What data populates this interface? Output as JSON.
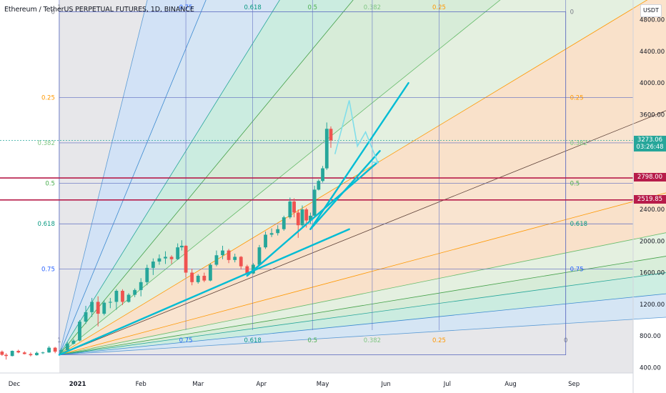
{
  "header": {
    "title": "Ethereum / TetherUS PERPETUAL FUTURES, 1D, BINANCE",
    "unit": "USDT"
  },
  "chart_data": {
    "type": "candlestick",
    "price_axis": {
      "ticks": [
        400,
        800,
        1200,
        1600,
        2000,
        2400,
        2800,
        3200,
        3600,
        4000,
        4400,
        4800
      ],
      "tick_labels": [
        "400.00",
        "800.00",
        "1200.00",
        "1600.00",
        "2000.00",
        "2400.00",
        "2800.00",
        "3200.00",
        "3600.00",
        "4000.00",
        "4400.00",
        "4800.00"
      ],
      "range": [
        330,
        5050
      ]
    },
    "time_axis": {
      "range": [
        "2020-11-24",
        "2021-09-30"
      ],
      "ticks": [
        {
          "date": "2020-12-01",
          "label": "Dec"
        },
        {
          "date": "2021-01-01",
          "label": "2021"
        },
        {
          "date": "2021-02-01",
          "label": "Feb"
        },
        {
          "date": "2021-03-01",
          "label": "Mar"
        },
        {
          "date": "2021-04-01",
          "label": "Apr"
        },
        {
          "date": "2021-05-01",
          "label": "May"
        },
        {
          "date": "2021-06-01",
          "label": "Jun"
        },
        {
          "date": "2021-07-01",
          "label": "Jul"
        },
        {
          "date": "2021-08-01",
          "label": "Aug"
        },
        {
          "date": "2021-09-01",
          "label": "Sep"
        }
      ]
    },
    "current_price": {
      "value": "3273.06",
      "countdown": "03:26:48",
      "color": "#26a69a"
    },
    "horizontal_levels": [
      {
        "value": 2798.0,
        "label": "2798.00",
        "color": "#b71c4a"
      },
      {
        "value": 2519.85,
        "label": "2519.85",
        "color": "#b71c4a"
      }
    ],
    "gann_box": {
      "start": {
        "date": "2020-12-23",
        "price": 560
      },
      "end": {
        "date": "2021-08-28",
        "price": 4900
      },
      "levels": [
        {
          "ratio": 0,
          "label": "0",
          "color": "#787b86"
        },
        {
          "ratio": 0.25,
          "label": "0.25",
          "color": "#ff9800"
        },
        {
          "ratio": 0.382,
          "label": "0.382",
          "color": "#81c784"
        },
        {
          "ratio": 0.5,
          "label": "0.5",
          "color": "#4caf50"
        },
        {
          "ratio": 0.618,
          "label": "0.618",
          "color": "#089981"
        },
        {
          "ratio": 0.75,
          "label": "0.75",
          "color": "#2962ff"
        },
        {
          "ratio": 1,
          "label": "1",
          "color": "#787b86"
        }
      ]
    },
    "gann_fan": {
      "origin": {
        "date": "2020-12-23",
        "price": 560
      },
      "slopes": [
        {
          "price_per_day": 104.1,
          "fill": "#cfe1f7",
          "line": "#5b9bd5"
        },
        {
          "price_per_day": 62.5,
          "fill": "#d3e4f5",
          "line": "#3b8ad0"
        },
        {
          "price_per_day": 41.6,
          "fill": "#c8ecdf",
          "line": "#26a69a"
        },
        {
          "price_per_day": 31.2,
          "fill": "#d5ecd6",
          "line": "#43a047"
        },
        {
          "price_per_day": 20.8,
          "fill": "#e3f1df",
          "line": "#66bb6a"
        },
        {
          "price_per_day": 15.6,
          "fill": "#fbe0c6",
          "line": "#ff9800"
        },
        {
          "price_per_day": 10.4,
          "fill": "#fbe3cd",
          "line": "#5d4037"
        },
        {
          "price_per_day": 6.9,
          "fill": "#fbe0c6",
          "line": "#ff9800"
        },
        {
          "price_per_day": 5.2,
          "fill": "#e3f1df",
          "line": "#66bb6a"
        },
        {
          "price_per_day": 4.2,
          "fill": "#d5ecd6",
          "line": "#43a047"
        },
        {
          "price_per_day": 3.5,
          "fill": "#c8ecdf",
          "line": "#26a69a"
        },
        {
          "price_per_day": 2.6,
          "fill": "#d3e4f5",
          "line": "#3b8ad0"
        },
        {
          "price_per_day": 1.6,
          "fill": "#cfe1f7",
          "line": "#5b9bd5"
        }
      ]
    },
    "trend_lines": [
      {
        "from": {
          "date": "2020-12-23",
          "price": 560
        },
        "to": {
          "date": "2021-05-14",
          "price": 2150
        }
      },
      {
        "from": {
          "date": "2021-03-25",
          "price": 1560
        },
        "to": {
          "date": "2021-05-28",
          "price": 3000
        }
      },
      {
        "from": {
          "date": "2021-04-25",
          "price": 2150
        },
        "to": {
          "date": "2021-06-12",
          "price": 4000
        }
      },
      {
        "from": {
          "date": "2021-04-25",
          "price": 2150
        },
        "to": {
          "date": "2021-05-29",
          "price": 3140
        }
      }
    ],
    "projection_path": [
      {
        "date": "2021-05-07",
        "price": 3100
      },
      {
        "date": "2021-05-14",
        "price": 3780
      },
      {
        "date": "2021-05-18",
        "price": 3200
      },
      {
        "date": "2021-05-22",
        "price": 3380
      },
      {
        "date": "2021-05-28",
        "price": 2990
      }
    ],
    "candles": [
      {
        "date": "2020-11-25",
        "open": 600,
        "high": 615,
        "low": 548,
        "close": 560
      },
      {
        "date": "2020-11-27",
        "open": 560,
        "high": 580,
        "low": 500,
        "close": 545
      },
      {
        "date": "2020-11-30",
        "open": 545,
        "high": 615,
        "low": 540,
        "close": 610
      },
      {
        "date": "2020-12-03",
        "open": 610,
        "high": 625,
        "low": 580,
        "close": 590
      },
      {
        "date": "2020-12-06",
        "open": 590,
        "high": 605,
        "low": 565,
        "close": 570
      },
      {
        "date": "2020-12-09",
        "open": 570,
        "high": 590,
        "low": 540,
        "close": 555
      },
      {
        "date": "2020-12-12",
        "open": 555,
        "high": 600,
        "low": 550,
        "close": 585
      },
      {
        "date": "2020-12-15",
        "open": 585,
        "high": 600,
        "low": 570,
        "close": 590
      },
      {
        "date": "2020-12-18",
        "open": 590,
        "high": 670,
        "low": 585,
        "close": 650
      },
      {
        "date": "2020-12-21",
        "open": 650,
        "high": 660,
        "low": 580,
        "close": 600
      },
      {
        "date": "2020-12-24",
        "open": 600,
        "high": 640,
        "low": 570,
        "close": 620
      },
      {
        "date": "2020-12-27",
        "open": 620,
        "high": 720,
        "low": 615,
        "close": 700
      },
      {
        "date": "2020-12-30",
        "open": 700,
        "high": 760,
        "low": 690,
        "close": 740
      },
      {
        "date": "2021-01-02",
        "open": 740,
        "high": 1000,
        "low": 730,
        "close": 980
      },
      {
        "date": "2021-01-05",
        "open": 980,
        "high": 1180,
        "low": 950,
        "close": 1100
      },
      {
        "date": "2021-01-08",
        "open": 1100,
        "high": 1280,
        "low": 1040,
        "close": 1230
      },
      {
        "date": "2021-01-11",
        "open": 1230,
        "high": 1300,
        "low": 920,
        "close": 1080
      },
      {
        "date": "2021-01-14",
        "open": 1080,
        "high": 1250,
        "low": 1060,
        "close": 1220
      },
      {
        "date": "2021-01-17",
        "open": 1220,
        "high": 1280,
        "low": 1150,
        "close": 1230
      },
      {
        "date": "2021-01-20",
        "open": 1230,
        "high": 1390,
        "low": 1130,
        "close": 1370
      },
      {
        "date": "2021-01-23",
        "open": 1370,
        "high": 1390,
        "low": 1190,
        "close": 1230
      },
      {
        "date": "2021-01-26",
        "open": 1230,
        "high": 1340,
        "low": 1220,
        "close": 1320
      },
      {
        "date": "2021-01-29",
        "open": 1320,
        "high": 1400,
        "low": 1290,
        "close": 1380
      },
      {
        "date": "2021-02-01",
        "open": 1380,
        "high": 1530,
        "low": 1300,
        "close": 1480
      },
      {
        "date": "2021-02-04",
        "open": 1480,
        "high": 1700,
        "low": 1440,
        "close": 1660
      },
      {
        "date": "2021-02-07",
        "open": 1660,
        "high": 1780,
        "low": 1570,
        "close": 1740
      },
      {
        "date": "2021-02-10",
        "open": 1740,
        "high": 1830,
        "low": 1700,
        "close": 1780
      },
      {
        "date": "2021-02-13",
        "open": 1780,
        "high": 1870,
        "low": 1710,
        "close": 1800
      },
      {
        "date": "2021-02-16",
        "open": 1800,
        "high": 1820,
        "low": 1710,
        "close": 1770
      },
      {
        "date": "2021-02-19",
        "open": 1770,
        "high": 1970,
        "low": 1760,
        "close": 1920
      },
      {
        "date": "2021-02-21",
        "open": 1920,
        "high": 2010,
        "low": 1880,
        "close": 1940
      },
      {
        "date": "2021-02-23",
        "open": 1940,
        "high": 1950,
        "low": 1540,
        "close": 1600
      },
      {
        "date": "2021-02-26",
        "open": 1600,
        "high": 1650,
        "low": 1440,
        "close": 1480
      },
      {
        "date": "2021-03-01",
        "open": 1480,
        "high": 1580,
        "low": 1460,
        "close": 1560
      },
      {
        "date": "2021-03-04",
        "open": 1560,
        "high": 1600,
        "low": 1480,
        "close": 1500
      },
      {
        "date": "2021-03-07",
        "open": 1500,
        "high": 1720,
        "low": 1490,
        "close": 1700
      },
      {
        "date": "2021-03-10",
        "open": 1700,
        "high": 1880,
        "low": 1680,
        "close": 1820
      },
      {
        "date": "2021-03-13",
        "open": 1820,
        "high": 1940,
        "low": 1770,
        "close": 1880
      },
      {
        "date": "2021-03-16",
        "open": 1880,
        "high": 1900,
        "low": 1720,
        "close": 1760
      },
      {
        "date": "2021-03-19",
        "open": 1760,
        "high": 1840,
        "low": 1730,
        "close": 1800
      },
      {
        "date": "2021-03-22",
        "open": 1800,
        "high": 1810,
        "low": 1640,
        "close": 1680
      },
      {
        "date": "2021-03-25",
        "open": 1680,
        "high": 1700,
        "low": 1560,
        "close": 1590
      },
      {
        "date": "2021-03-28",
        "open": 1590,
        "high": 1720,
        "low": 1580,
        "close": 1700
      },
      {
        "date": "2021-03-31",
        "open": 1700,
        "high": 1950,
        "low": 1690,
        "close": 1920
      },
      {
        "date": "2021-04-03",
        "open": 1920,
        "high": 2120,
        "low": 1900,
        "close": 2080
      },
      {
        "date": "2021-04-06",
        "open": 2080,
        "high": 2160,
        "low": 2050,
        "close": 2100
      },
      {
        "date": "2021-04-09",
        "open": 2100,
        "high": 2200,
        "low": 2070,
        "close": 2150
      },
      {
        "date": "2021-04-12",
        "open": 2150,
        "high": 2320,
        "low": 2130,
        "close": 2300
      },
      {
        "date": "2021-04-15",
        "open": 2300,
        "high": 2550,
        "low": 2280,
        "close": 2500
      },
      {
        "date": "2021-04-17",
        "open": 2500,
        "high": 2540,
        "low": 2300,
        "close": 2360
      },
      {
        "date": "2021-04-19",
        "open": 2360,
        "high": 2400,
        "low": 2040,
        "close": 2200
      },
      {
        "date": "2021-04-21",
        "open": 2200,
        "high": 2450,
        "low": 2180,
        "close": 2400
      },
      {
        "date": "2021-04-23",
        "open": 2400,
        "high": 2420,
        "low": 2170,
        "close": 2260
      },
      {
        "date": "2021-04-25",
        "open": 2260,
        "high": 2360,
        "low": 2220,
        "close": 2320
      },
      {
        "date": "2021-04-27",
        "open": 2320,
        "high": 2700,
        "low": 2310,
        "close": 2650
      },
      {
        "date": "2021-04-29",
        "open": 2650,
        "high": 2780,
        "low": 2640,
        "close": 2760
      },
      {
        "date": "2021-05-01",
        "open": 2760,
        "high": 2950,
        "low": 2740,
        "close": 2920
      },
      {
        "date": "2021-05-03",
        "open": 2920,
        "high": 3500,
        "low": 2900,
        "close": 3420
      },
      {
        "date": "2021-05-05",
        "open": 3420,
        "high": 3450,
        "low": 3180,
        "close": 3273
      }
    ]
  }
}
